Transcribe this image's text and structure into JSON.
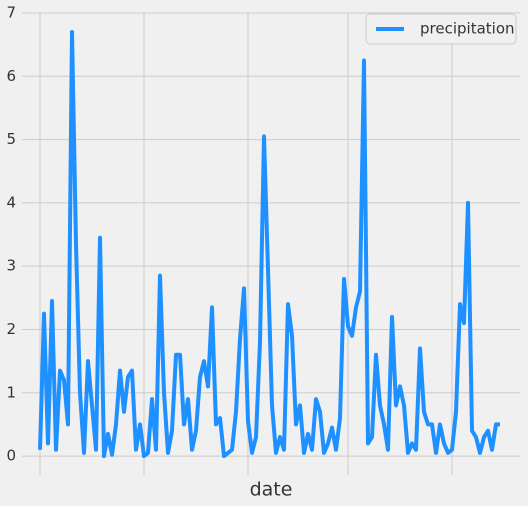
{
  "chart_data": {
    "type": "line",
    "xlabel": "date",
    "categories": [
      null,
      null,
      null,
      null,
      null,
      null,
      null,
      null,
      null,
      null,
      null,
      null,
      null,
      null,
      null,
      null,
      null,
      null,
      null,
      null,
      null,
      null,
      null,
      null,
      null,
      null,
      null,
      null,
      null,
      null,
      null,
      null,
      null,
      null,
      null,
      null,
      null,
      null,
      null,
      null,
      null,
      null,
      null,
      null,
      null,
      null,
      null,
      null,
      null,
      null,
      null,
      null,
      null,
      null,
      null,
      null,
      null,
      null,
      null,
      null,
      null,
      null,
      null,
      null,
      null,
      null,
      null,
      null,
      null,
      null,
      null,
      null,
      null,
      null,
      null,
      null,
      null,
      null,
      null,
      null,
      null,
      null,
      null,
      null,
      null,
      null,
      null,
      null,
      null,
      null,
      null,
      null,
      null,
      null,
      null,
      null,
      null,
      null,
      null,
      null,
      null,
      null,
      null,
      null,
      null,
      null,
      null,
      null,
      null,
      null,
      null,
      null,
      null,
      null,
      null,
      null
    ],
    "series": [
      {
        "name": "precipitation",
        "color": "#1e90ff",
        "values": [
          0.1,
          2.25,
          0.2,
          2.45,
          0.1,
          1.35,
          1.2,
          0.5,
          6.7,
          3.35,
          1.0,
          0.05,
          1.5,
          0.8,
          0.1,
          3.45,
          0.0,
          0.35,
          0.02,
          0.5,
          1.35,
          0.7,
          1.25,
          1.35,
          0.1,
          0.5,
          0.0,
          0.05,
          0.9,
          0.1,
          2.85,
          1.0,
          0.05,
          0.4,
          1.6,
          1.6,
          0.5,
          0.9,
          0.1,
          0.4,
          1.25,
          1.5,
          1.1,
          2.35,
          0.5,
          0.6,
          0.0,
          0.05,
          0.1,
          0.7,
          1.85,
          2.65,
          0.55,
          0.05,
          0.3,
          1.8,
          5.05,
          2.95,
          0.8,
          0.05,
          0.3,
          0.1,
          2.4,
          1.9,
          0.5,
          0.8,
          0.05,
          0.35,
          0.1,
          0.9,
          0.7,
          0.05,
          0.2,
          0.45,
          0.1,
          0.6,
          2.8,
          2.05,
          1.9,
          2.35,
          2.6,
          6.25,
          0.2,
          0.3,
          1.6,
          0.8,
          0.5,
          0.1,
          2.2,
          0.8,
          1.1,
          0.8,
          0.05,
          0.2,
          0.1,
          1.7,
          0.7,
          0.5,
          0.5,
          0.05,
          0.5,
          0.2,
          0.05,
          0.1,
          0.7,
          2.4,
          2.1,
          4.0,
          0.4,
          0.3,
          0.05,
          0.3,
          0.4,
          0.1,
          0.5,
          0.5
        ]
      }
    ],
    "xlim": [
      -4.5,
      120
    ],
    "xticks": [
      0,
      26,
      52,
      77,
      103
    ],
    "ylim": [
      -0.22,
      7
    ],
    "yticks": [
      0,
      1,
      2,
      3,
      4,
      5,
      6,
      7
    ],
    "grid": true,
    "legend": "upper right"
  }
}
